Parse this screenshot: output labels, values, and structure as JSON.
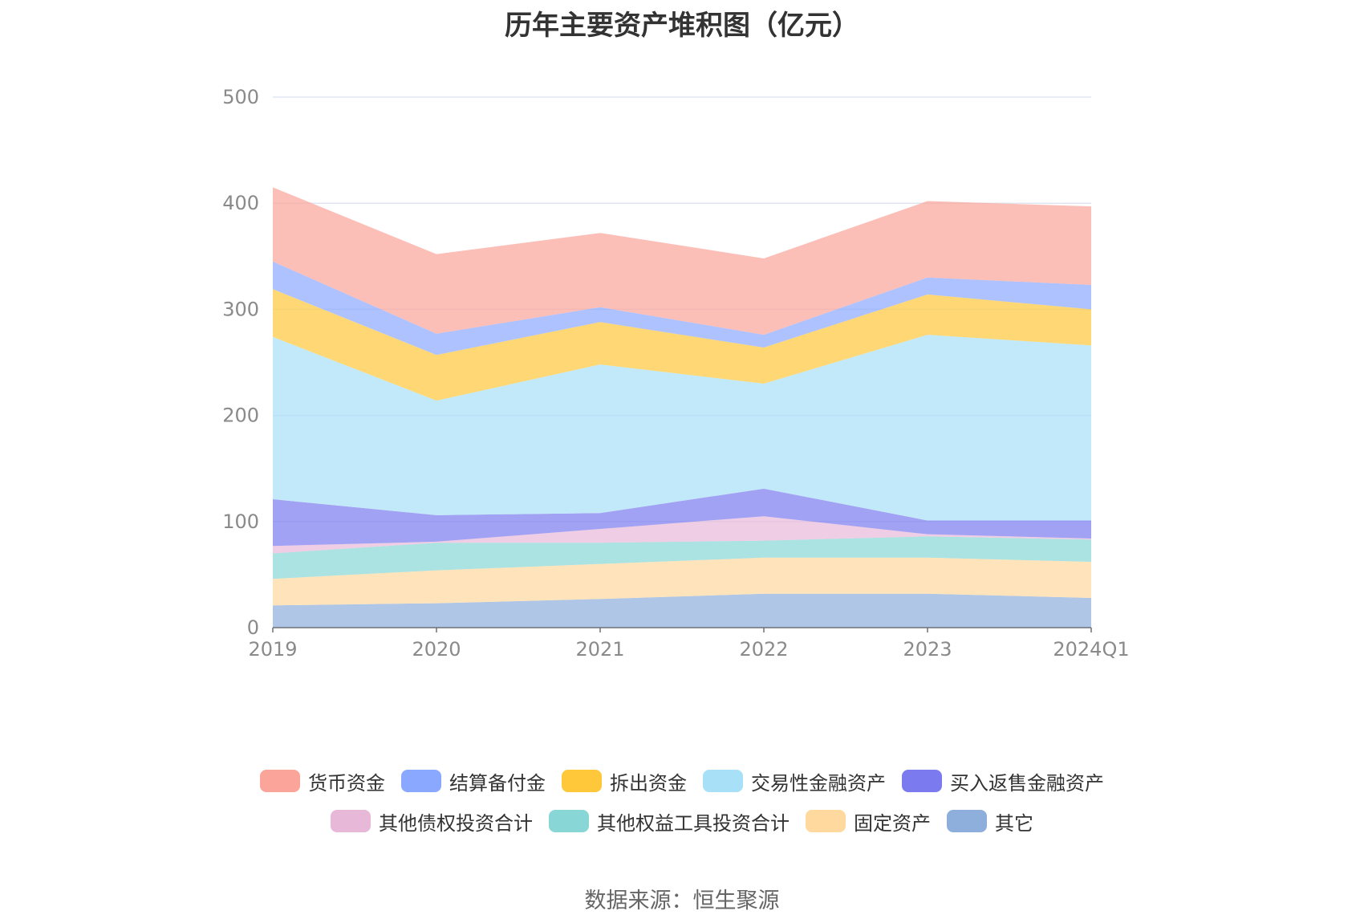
{
  "title": "历年主要资产堆积图（亿元）",
  "source": "数据来源：恒生聚源",
  "chart_data": {
    "type": "area",
    "stacked": true,
    "categories": [
      "2019",
      "2020",
      "2021",
      "2022",
      "2023",
      "2024Q1"
    ],
    "yticks": [
      "0",
      "100",
      "200",
      "300",
      "400",
      "500"
    ],
    "ylim": [
      0,
      500
    ],
    "grid": true,
    "legend_position": "bottom",
    "series": [
      {
        "name": "其它",
        "color": "#8eaedc",
        "values": [
          21,
          23,
          27,
          32,
          32,
          28
        ]
      },
      {
        "name": "固定资产",
        "color": "#ffd99e",
        "values": [
          25,
          31,
          33,
          34,
          34,
          34
        ]
      },
      {
        "name": "其他权益工具投资合计",
        "color": "#88d6d6",
        "values": [
          24,
          26,
          20,
          16,
          20,
          21
        ]
      },
      {
        "name": "其他债权投资合计",
        "color": "#e8b8d8",
        "values": [
          7,
          1,
          13,
          23,
          2,
          1
        ]
      },
      {
        "name": "买入返售金融资产",
        "color": "#7b7bef",
        "values": [
          44,
          25,
          15,
          26,
          13,
          17
        ]
      },
      {
        "name": "交易性金融资产",
        "color": "#a8e0f8",
        "values": [
          153,
          108,
          140,
          99,
          175,
          165
        ]
      },
      {
        "name": "拆出资金",
        "color": "#ffc83a",
        "values": [
          45,
          43,
          40,
          34,
          38,
          34
        ]
      },
      {
        "name": "结算备付金",
        "color": "#8aa8ff",
        "values": [
          26,
          20,
          14,
          12,
          16,
          23
        ]
      },
      {
        "name": "货币资金",
        "color": "#fba49a",
        "values": [
          70,
          75,
          70,
          72,
          72,
          74
        ]
      }
    ]
  },
  "legend": {
    "row1": [
      "货币资金",
      "结算备付金",
      "拆出资金",
      "交易性金融资产",
      "买入返售金融资产"
    ],
    "row2": [
      "其他债权投资合计",
      "其他权益工具投资合计",
      "固定资产",
      "其它"
    ]
  }
}
